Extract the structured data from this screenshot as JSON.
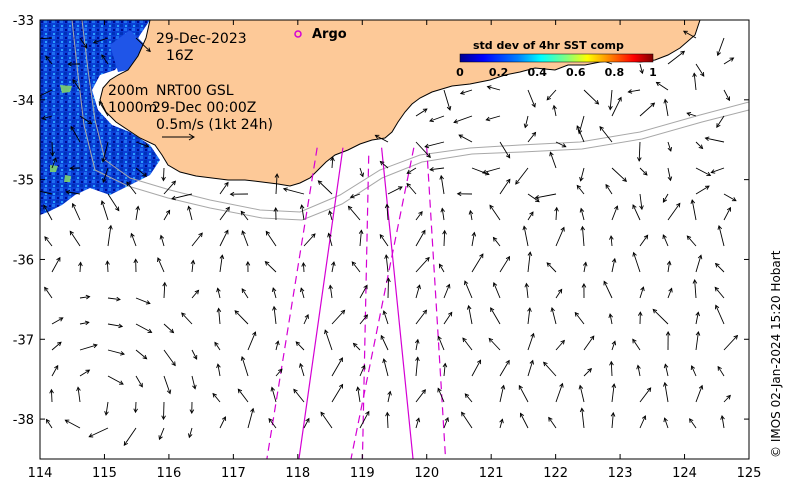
{
  "annotations": {
    "date": "29-Dec-2023",
    "hour": "16Z",
    "depth_200": "200m",
    "depth_1000": "1000m",
    "product": "NRT00 GSL",
    "product_time": "29-Dec 00:00Z",
    "scale_label": "0.5m/s (1kt 24h)",
    "argo_label": "Argo"
  },
  "colorbar": {
    "title": "std dev of 4hr SST comp",
    "ticks": [
      "0",
      "0.2",
      "0.4",
      "0.6",
      "0.8",
      "1"
    ],
    "colors": [
      "#00008f",
      "#0000ff",
      "#0080ff",
      "#00ffff",
      "#80ff80",
      "#ffff00",
      "#ff8000",
      "#ff0000",
      "#800000"
    ]
  },
  "credit": "© IMOS 02-Jan-2024 15:20 Hobart",
  "colors": {
    "land": "#fdc998",
    "ocean": "#ffffff",
    "isobath": "#a8a8a8",
    "track": "#d400d4",
    "arrow": "#000000"
  },
  "map": {
    "lon_range": [
      114,
      125
    ],
    "lat_range": [
      -38.5,
      -33
    ],
    "lon_ticks": [
      "114",
      "115",
      "116",
      "117",
      "118",
      "119",
      "120",
      "121",
      "122",
      "123",
      "124",
      "125"
    ],
    "lat_ticks": [
      "-33",
      "-34",
      "-35",
      "-36",
      "-37",
      "-38"
    ]
  },
  "tracks": [
    {
      "style": "solid",
      "from": [
        118.7,
        -34.6
      ],
      "to": [
        118.0,
        -38.6
      ]
    },
    {
      "style": "solid",
      "from": [
        119.3,
        -34.6
      ],
      "to": [
        119.8,
        -38.6
      ]
    },
    {
      "style": "dashed",
      "from": [
        118.3,
        -34.6
      ],
      "to": [
        117.5,
        -38.6
      ]
    },
    {
      "style": "dashed",
      "from": [
        119.1,
        -34.7
      ],
      "to": [
        119.0,
        -38.6
      ]
    },
    {
      "style": "dashed",
      "from": [
        119.8,
        -34.6
      ],
      "to": [
        118.8,
        -38.6
      ]
    },
    {
      "style": "dashed",
      "from": [
        120.0,
        -34.6
      ],
      "to": [
        120.3,
        -38.6
      ]
    }
  ]
}
